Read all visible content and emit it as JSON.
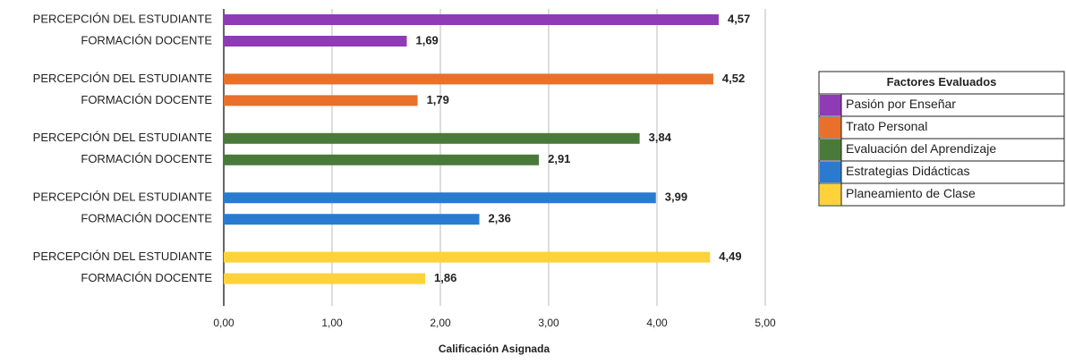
{
  "chart_data": {
    "type": "bar",
    "orientation": "horizontal",
    "categories": [
      "PERCEPCIÓN DEL ESTUDIANTE",
      "FORMACIÓN DOCENTE"
    ],
    "series": [
      {
        "name": "Pasión por Enseñar",
        "color": "#8e3bb5",
        "values": [
          4.57,
          1.69
        ],
        "value_labels": [
          "4,57",
          "1,69"
        ]
      },
      {
        "name": "Trato Personal",
        "color": "#e8702a",
        "values": [
          4.52,
          1.79
        ],
        "value_labels": [
          "4,52",
          "1,79"
        ]
      },
      {
        "name": "Evaluación del Aprendizaje",
        "color": "#4a7a3a",
        "values": [
          3.84,
          2.91
        ],
        "value_labels": [
          "3,84",
          "2,91"
        ]
      },
      {
        "name": "Estrategias Didácticas",
        "color": "#2a7bd0",
        "values": [
          3.99,
          2.36
        ],
        "value_labels": [
          "3,99",
          "2,36"
        ]
      },
      {
        "name": "Planeamiento de Clase",
        "color": "#fdd23a",
        "values": [
          4.49,
          1.86
        ],
        "value_labels": [
          "4,49",
          "1,86"
        ]
      }
    ],
    "xlabel": "Calificación Asignada",
    "xlim": [
      0,
      5
    ],
    "xticks": [
      {
        "value": 0,
        "label": "0,00"
      },
      {
        "value": 1,
        "label": "1,00"
      },
      {
        "value": 2,
        "label": "2,00"
      },
      {
        "value": 3,
        "label": "3,00"
      },
      {
        "value": 4,
        "label": "4,00"
      },
      {
        "value": 5,
        "label": "5,00"
      }
    ],
    "grid": true,
    "legend_title": "Factores Evaluados",
    "legend_position": "right"
  }
}
